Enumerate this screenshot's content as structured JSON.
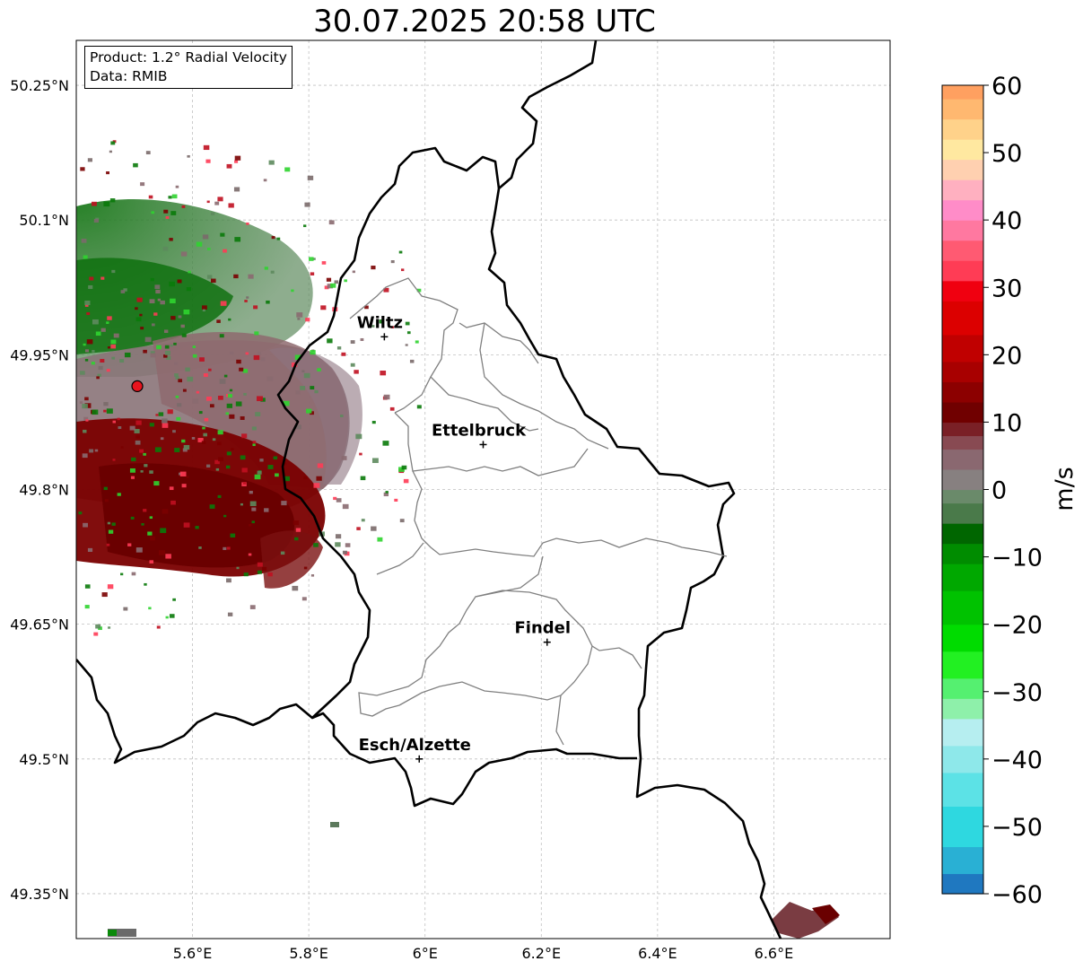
{
  "title": "30.07.2025 20:58 UTC",
  "info": {
    "product": "Product: 1.2° Radial Velocity",
    "data": "Data: RMIB"
  },
  "axes": {
    "lon_range": [
      5.4,
      6.8
    ],
    "lat_range": [
      49.3,
      50.3
    ],
    "lon_ticks": [
      "5.6°E",
      "5.8°E",
      "6°E",
      "6.2°E",
      "6.4°E",
      "6.6°E"
    ],
    "lat_ticks": [
      "50.25°N",
      "50.1°N",
      "49.95°N",
      "49.8°N",
      "49.65°N",
      "49.5°N",
      "49.35°N"
    ],
    "grid": true
  },
  "colorbar": {
    "unit": "m/s",
    "min": -60,
    "max": 60,
    "tick_labels": [
      "60",
      "50",
      "40",
      "30",
      "20",
      "10",
      "0",
      "−10",
      "−20",
      "−30",
      "−40",
      "−50",
      "−60"
    ]
  },
  "cities": [
    {
      "name": "Wiltz",
      "lon": 5.93,
      "lat": 49.97
    },
    {
      "name": "Ettelbruck",
      "lon": 6.1,
      "lat": 49.85
    },
    {
      "name": "Findel",
      "lon": 6.21,
      "lat": 49.63
    },
    {
      "name": "Esch/Alzette",
      "lon": 5.99,
      "lat": 49.5
    }
  ],
  "radar_site": {
    "lon": 5.505,
    "lat": 49.915,
    "color": "#e8141e"
  },
  "colors": {
    "border": "#000000",
    "canton_lines": "#808080",
    "grid": "#c0c0c0"
  }
}
